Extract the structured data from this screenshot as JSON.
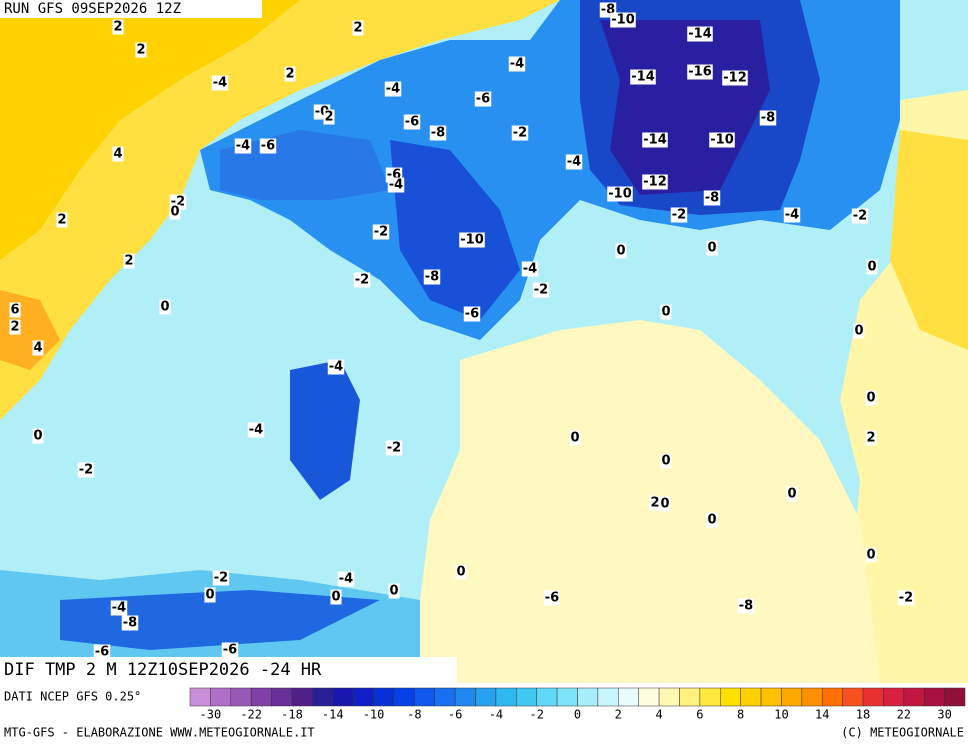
{
  "header": {
    "run": "RUN GFS 09SEP2026 12Z"
  },
  "map": {
    "labels": [
      "-8",
      "-10",
      "-14",
      "2",
      "2",
      "2",
      "-4",
      "-4",
      "2",
      "-14",
      "-16",
      "-12",
      "-4",
      "-6",
      "-0",
      "2",
      "-6",
      "-8",
      "-2",
      "-8",
      "4",
      "-4",
      "-6",
      "-14",
      "-10",
      "-4",
      "-6",
      "-4",
      "-12",
      "-10",
      "-8",
      "-2",
      "0",
      "-2",
      "-4",
      "-2",
      "2",
      "-2",
      "-10",
      "0",
      "0",
      "2",
      "-4",
      "0",
      "-2",
      "-8",
      "-2",
      "6",
      "2",
      "0",
      "-6",
      "0",
      "0",
      "4",
      "-4",
      "0",
      "-4",
      "0",
      "0",
      "2",
      "-2",
      "-2",
      "0",
      "0",
      "2",
      "0",
      "0",
      "0",
      "0",
      "-2",
      "-4",
      "-6",
      "-8",
      "-2",
      "0",
      "0",
      "0",
      "-4",
      "-8",
      "-6",
      "-6"
    ]
  },
  "title": "DIF TMP 2 M 12Z10SEP2026 -24 HR",
  "source": "DATI NCEP GFS 0.25°",
  "colorbar": {
    "ticks": [
      -30,
      -22,
      -18,
      -14,
      -10,
      -8,
      -6,
      -4,
      -2,
      0,
      2,
      4,
      6,
      8,
      10,
      14,
      18,
      22,
      30
    ],
    "colors": [
      "#c890d8",
      "#b070c8",
      "#9858b8",
      "#8040a8",
      "#683098",
      "#502088",
      "#282098",
      "#1818b0",
      "#1020c8",
      "#0830d8",
      "#0840e8",
      "#1058f0",
      "#1870f0",
      "#2088f0",
      "#28a0f0",
      "#30b8f0",
      "#40c8f0",
      "#60d8f8",
      "#80e4f8",
      "#a8eefa",
      "#c8f6fc",
      "#e8fcfe",
      "#fffce0",
      "#fff8b0",
      "#fff080",
      "#ffe840",
      "#ffe000",
      "#ffd000",
      "#ffc000",
      "#ffa800",
      "#ff9000",
      "#ff7000",
      "#f85020",
      "#e83030",
      "#d82040",
      "#c01840",
      "#a81040",
      "#901038"
    ]
  },
  "footer": {
    "left": "MTG-GFS - ELABORAZIONE WWW.METEOGIORNALE.IT",
    "right": "(C) METEOGIORNALE"
  }
}
